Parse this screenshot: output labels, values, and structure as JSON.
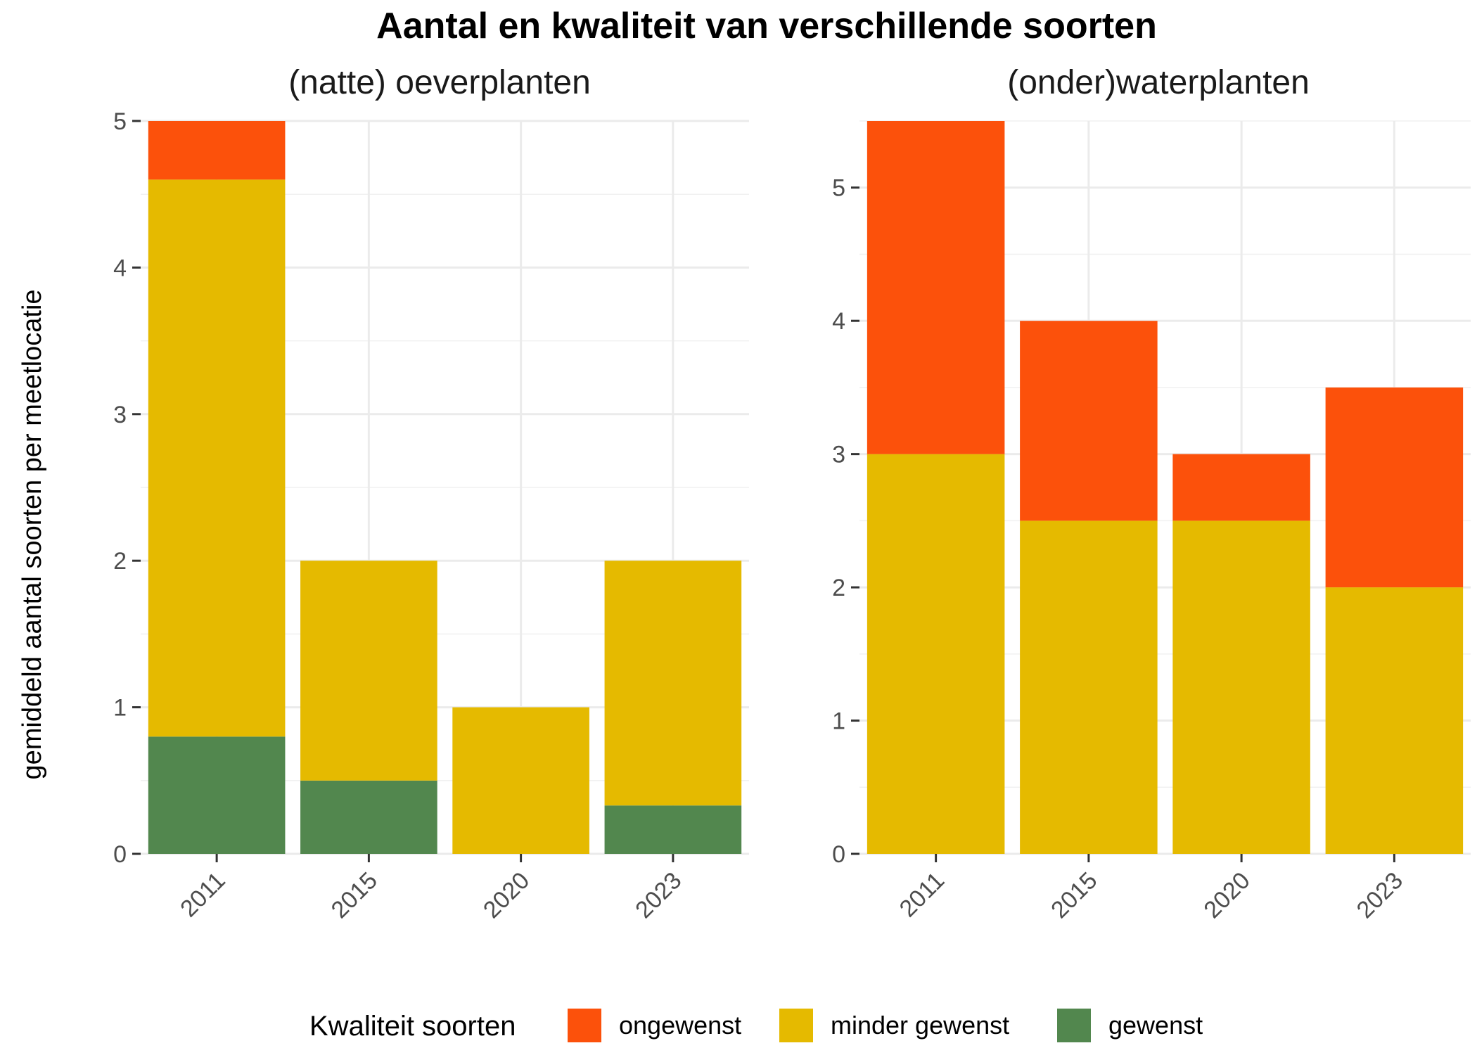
{
  "title": "Aantal en kwaliteit van verschillende soorten",
  "ylabel": "gemiddeld aantal soorten per meetlocatie",
  "legend": {
    "title": "Kwaliteit soorten",
    "items": [
      {
        "label": "ongewenst",
        "color": "#FC510B"
      },
      {
        "label": "minder gewenst",
        "color": "#E5BA00"
      },
      {
        "label": "gewenst",
        "color": "#52874E"
      }
    ]
  },
  "chart_data": [
    {
      "type": "bar",
      "stacked": true,
      "facet_title": "(natte) oeverplanten",
      "categories": [
        "2011",
        "2015",
        "2020",
        "2023"
      ],
      "series": [
        {
          "name": "gewenst",
          "color": "#52874E",
          "values": [
            0.8,
            0.5,
            0,
            0.33
          ]
        },
        {
          "name": "minder gewenst",
          "color": "#E5BA00",
          "values": [
            3.8,
            1.5,
            1.0,
            1.67
          ]
        },
        {
          "name": "ongewenst",
          "color": "#FC510B",
          "values": [
            0.4,
            0,
            0,
            0
          ]
        }
      ],
      "ylim": [
        0,
        5
      ],
      "yticks": [
        0,
        1,
        2,
        3,
        4,
        5
      ],
      "grid": true
    },
    {
      "type": "bar",
      "stacked": true,
      "facet_title": "(onder)waterplanten",
      "categories": [
        "2011",
        "2015",
        "2020",
        "2023"
      ],
      "series": [
        {
          "name": "gewenst",
          "color": "#52874E",
          "values": [
            0,
            0,
            0,
            0
          ]
        },
        {
          "name": "minder gewenst",
          "color": "#E5BA00",
          "values": [
            3.0,
            2.5,
            2.5,
            2.0
          ]
        },
        {
          "name": "ongewenst",
          "color": "#FC510B",
          "values": [
            2.5,
            1.5,
            0.5,
            1.5
          ]
        }
      ],
      "ylim": [
        0,
        5.5
      ],
      "yticks": [
        0,
        1,
        2,
        3,
        4,
        5
      ],
      "grid": true
    }
  ]
}
